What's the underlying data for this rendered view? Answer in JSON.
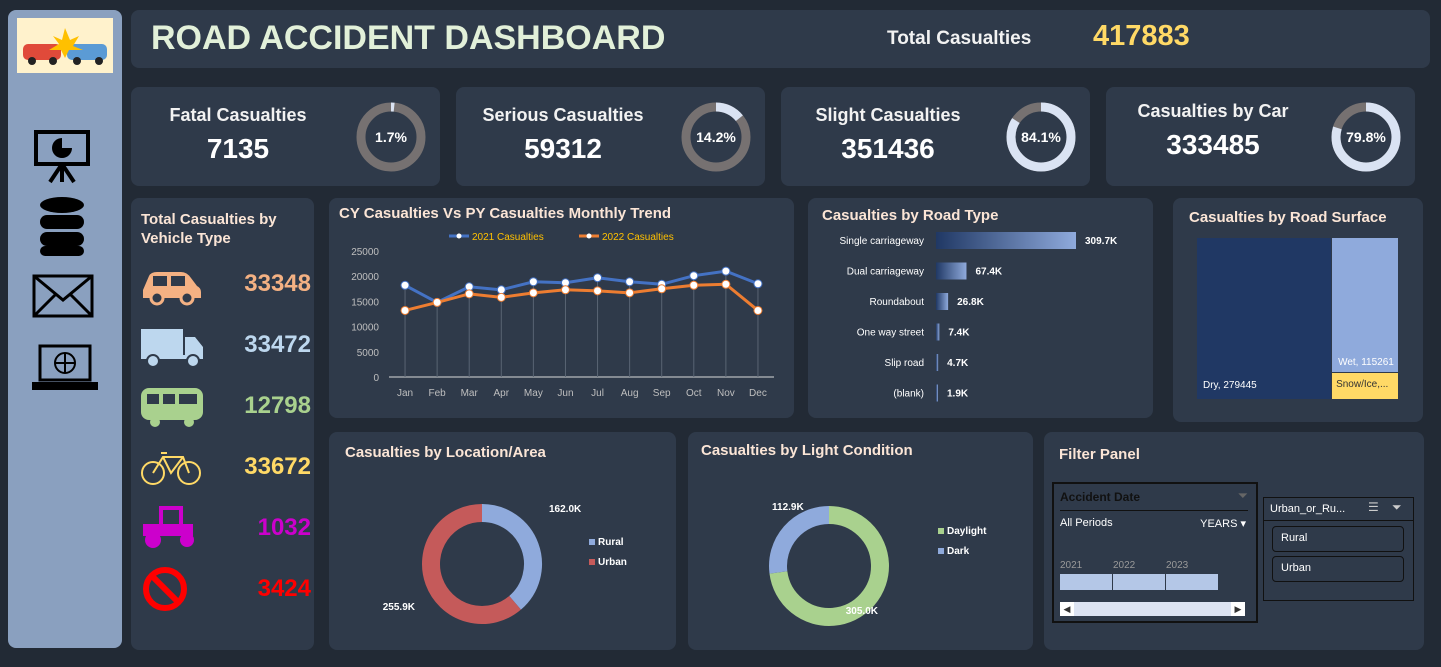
{
  "header": {
    "title": "ROAD ACCIDENT DASHBOARD",
    "total_label": "Total Casualties",
    "total_value": "417883"
  },
  "sidebar": {
    "icons": [
      "car-crash-logo",
      "presentation-icon",
      "database-icon",
      "mail-icon",
      "laptop-globe-icon"
    ]
  },
  "kpis": [
    {
      "label": "Fatal Casualties",
      "value": "7135",
      "pct": "1.7%",
      "fraction": 0.017
    },
    {
      "label": "Serious Casualties",
      "value": "59312",
      "pct": "14.2%",
      "fraction": 0.142
    },
    {
      "label": "Slight Casualties",
      "value": "351436",
      "pct": "84.1%",
      "fraction": 0.841
    },
    {
      "label": "Casualties by Car",
      "value": "333485",
      "pct": "79.8%",
      "fraction": 0.798
    }
  ],
  "vehicles": {
    "title": "Total Casualties by Vehicle Type",
    "items": [
      {
        "icon": "car-icon",
        "value": "33348",
        "color": "#f4b183"
      },
      {
        "icon": "truck-icon",
        "value": "33472",
        "color": "#bdd7ee"
      },
      {
        "icon": "bus-icon",
        "value": "12798",
        "color": "#a9d18e"
      },
      {
        "icon": "bicycle-icon",
        "value": "33672",
        "color": "#ffd966"
      },
      {
        "icon": "tractor-icon",
        "value": "1032",
        "color": "#cc00cc"
      },
      {
        "icon": "prohibited-icon",
        "value": "3424",
        "color": "#ff0000"
      }
    ]
  },
  "chart_data": [
    {
      "type": "line",
      "title": "CY Casualties Vs PY Casualties Monthly Trend",
      "categories": [
        "Jan",
        "Feb",
        "Mar",
        "Apr",
        "May",
        "Jun",
        "Jul",
        "Aug",
        "Sep",
        "Oct",
        "Nov",
        "Dec"
      ],
      "ylim": [
        0,
        25000
      ],
      "yticks": [
        "0",
        "5000",
        "10000",
        "15000",
        "20000",
        "25000"
      ],
      "legend": "top",
      "series": [
        {
          "name": "2021 Casualties",
          "color": "#4472c4",
          "values": [
            18200,
            14800,
            17900,
            17300,
            18900,
            18700,
            19700,
            18900,
            18400,
            20100,
            21000,
            18500
          ]
        },
        {
          "name": "2022 Casualties",
          "color": "#ed7d31",
          "values": [
            13200,
            14800,
            16500,
            15800,
            16700,
            17300,
            17100,
            16700,
            17500,
            18200,
            18400,
            13200
          ]
        }
      ]
    },
    {
      "type": "bar",
      "title": "Casualties by Road Type",
      "categories": [
        "Single carriageway",
        "Dual carriageway",
        "Roundabout",
        "One way street",
        "Slip road",
        "(blank)"
      ],
      "values": [
        309.7,
        67.4,
        26.8,
        7.4,
        4.7,
        1.9
      ],
      "labels": [
        "309.7K",
        "67.4K",
        "26.8K",
        "7.4K",
        "4.7K",
        "1.9K"
      ]
    },
    {
      "type": "treemap",
      "title": "Casualties by Road Surface",
      "items": [
        {
          "label": "Dry, 279445",
          "value": 279445,
          "color": "#203864"
        },
        {
          "label": "Wet, 115261",
          "value": 115261,
          "color": "#8faadc"
        },
        {
          "label": "Snow/Ice,...",
          "value": 23177,
          "color": "#ffd966"
        }
      ]
    },
    {
      "type": "pie",
      "title": "Casualties by Location/Area",
      "donut": true,
      "legend": "right",
      "slices": [
        {
          "name": "Rural",
          "value": 162.0,
          "label": "162.0K",
          "color": "#8faadc"
        },
        {
          "name": "Urban",
          "value": 255.9,
          "label": "255.9K",
          "color": "#c55a5a"
        }
      ]
    },
    {
      "type": "pie",
      "title": "Casualties by Light Condition",
      "donut": true,
      "legend": "right",
      "slices": [
        {
          "name": "Daylight",
          "value": 305.0,
          "label": "305.0K",
          "color": "#a9d18e"
        },
        {
          "name": "Dark",
          "value": 112.9,
          "label": "112.9K",
          "color": "#8faadc"
        }
      ]
    }
  ],
  "filter": {
    "title": "Filter Panel",
    "date_slicer": {
      "title": "Accident Date",
      "period": "All Periods",
      "level": "YEARS",
      "years": [
        "2021",
        "2022",
        "2023"
      ]
    },
    "area_slicer": {
      "title": "Urban_or_Ru...",
      "items": [
        "Rural",
        "Urban"
      ]
    }
  }
}
